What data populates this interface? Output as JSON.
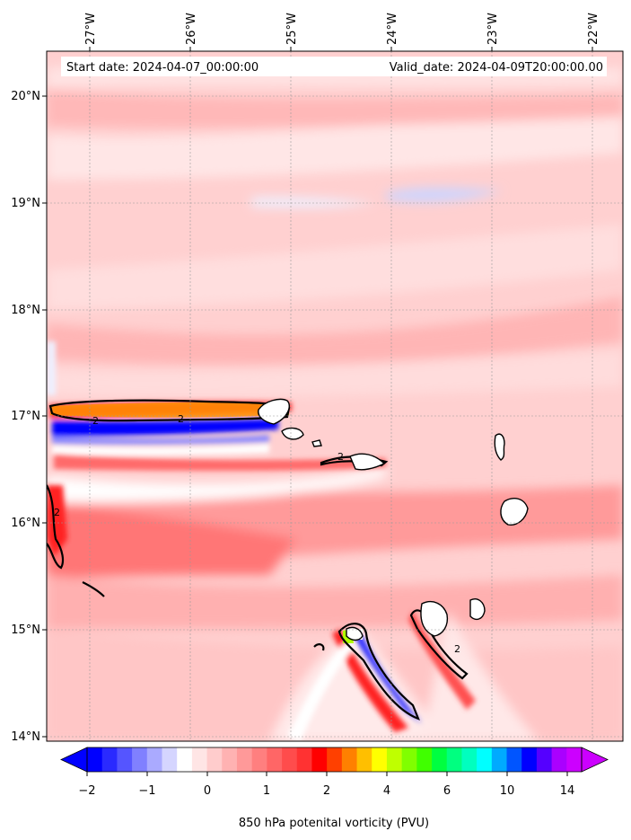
{
  "header": {
    "start_date": "Start date: 2024-04-07_00:00:00",
    "valid_date": "Valid_date: 2024-04-09T20:00:00.00"
  },
  "map": {
    "lon_labels": [
      "27°W",
      "26°W",
      "25°W",
      "24°W",
      "23°W",
      "22°W"
    ],
    "lat_labels": [
      "20°N",
      "19°N",
      "18°N",
      "17°N",
      "16°N",
      "15°N",
      "14°N"
    ],
    "contour_label": "2"
  },
  "colorbar": {
    "tick_labels": [
      "−2",
      "−1",
      "0",
      "1",
      "2",
      "4",
      "6",
      "10",
      "14"
    ],
    "colors": [
      "#0000ff",
      "#2a2aff",
      "#5555ff",
      "#8080ff",
      "#aaaaff",
      "#d5d5ff",
      "#ffffff",
      "#ffe5e5",
      "#ffcccc",
      "#ffb2b2",
      "#ff9999",
      "#ff7f7f",
      "#ff6666",
      "#ff4c4c",
      "#ff3232",
      "#ff0000",
      "#ff4000",
      "#ff8000",
      "#ffbf00",
      "#ffff00",
      "#bfff00",
      "#80ff00",
      "#40ff00",
      "#00ff40",
      "#00ff80",
      "#00ffbf",
      "#00ffff",
      "#00aaff",
      "#0055ff",
      "#0000ff",
      "#5500ff",
      "#aa00ff",
      "#cc00ff"
    ],
    "label": "850 hPa potenital vorticity (PVU)"
  }
}
